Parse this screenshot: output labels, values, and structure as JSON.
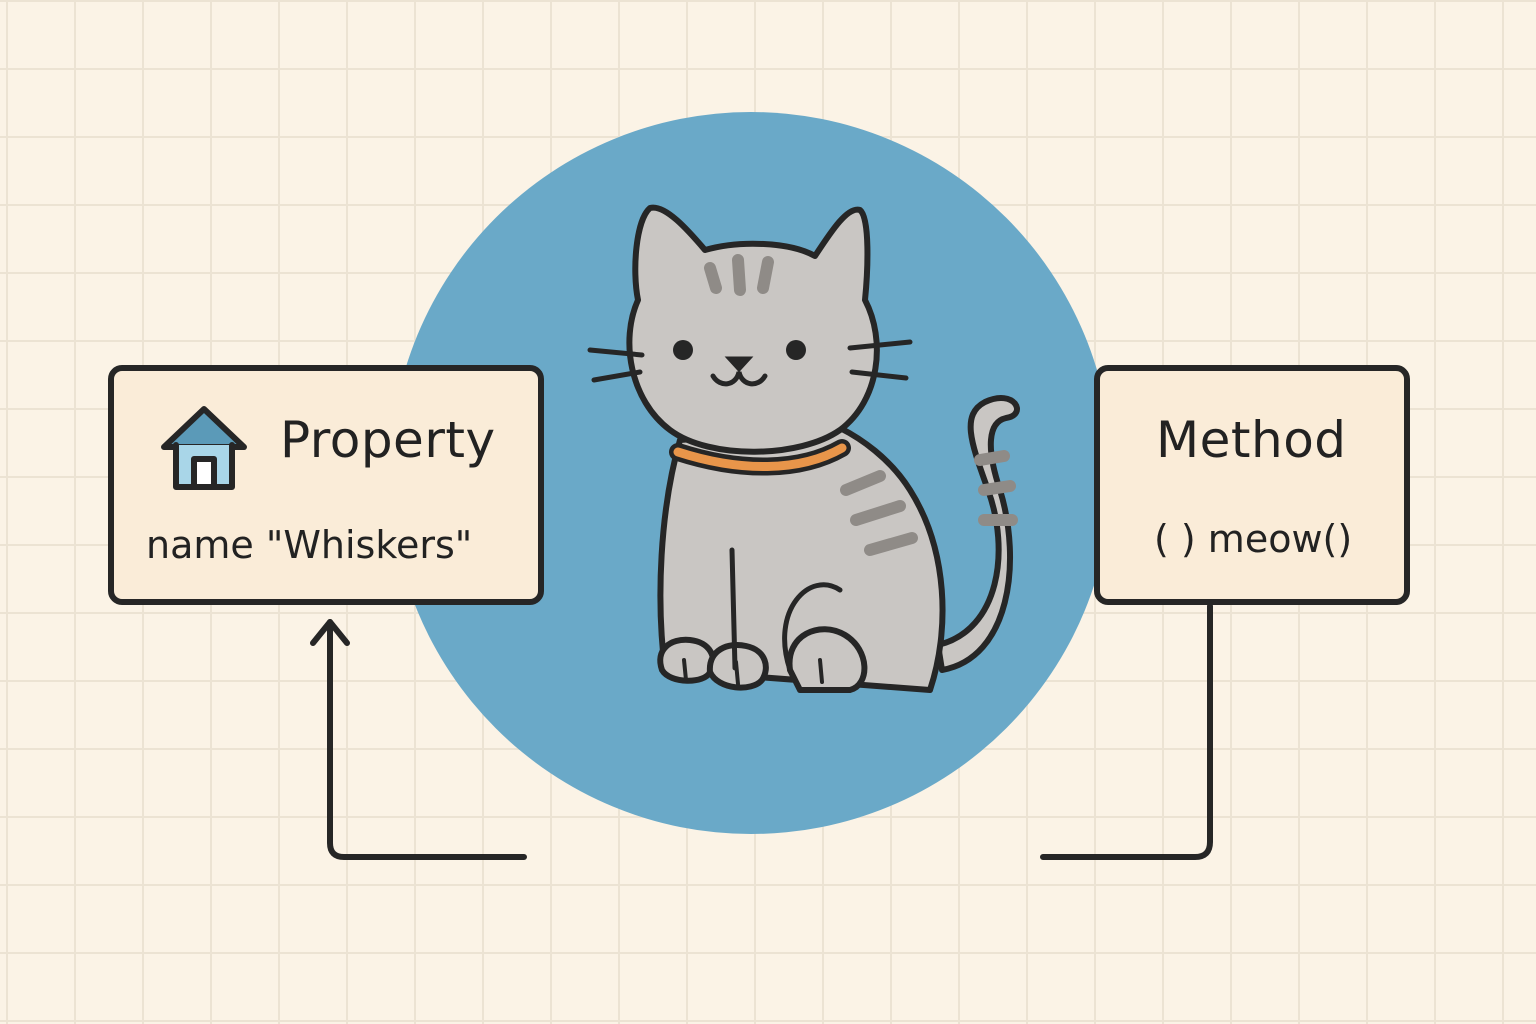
{
  "property_card": {
    "title": "Property",
    "value_line": "name \"Whiskers\"",
    "icon": "house-icon"
  },
  "method_card": {
    "title": "Method",
    "value_line": "( ) meow()"
  },
  "colors": {
    "background": "#fbf3e6",
    "grid": "#ece3d3",
    "circle": "#6aa9c8",
    "card_fill": "#faecd8",
    "outline": "#262626",
    "cat_fur": "#c9c6c3",
    "cat_stripe": "#8f8b87",
    "collar": "#e8954a",
    "house_blue": "#6aa9c8"
  }
}
